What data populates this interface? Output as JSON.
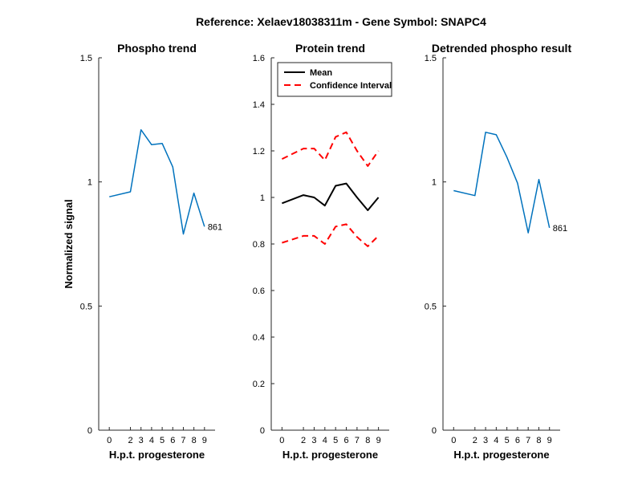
{
  "figure": {
    "suptitle": "Reference:  Xelaev18038311m - Gene Symbol:  SNAPC4"
  },
  "chart_data": [
    {
      "type": "line",
      "title": "Phospho trend",
      "xlabel": "H.p.t. progesterone",
      "ylabel": "Normalized signal",
      "x": [
        0,
        2,
        3,
        4,
        5,
        6,
        7,
        8,
        9
      ],
      "xticks": [
        "0",
        "2",
        "3",
        "4",
        "5",
        "6",
        "7",
        "8",
        "9"
      ],
      "ylim": [
        0,
        1.5
      ],
      "yticks": [
        "0",
        "0.5",
        "1",
        "1.5"
      ],
      "series": [
        {
          "name": "",
          "color": "#0072BD",
          "values": [
            0.94,
            0.96,
            1.21,
            1.15,
            1.155,
            1.06,
            0.79,
            0.955,
            0.82
          ]
        }
      ],
      "annotation": "861"
    },
    {
      "type": "line",
      "title": "Protein trend",
      "xlabel": "H.p.t. progesterone",
      "ylabel": "",
      "x": [
        0,
        2,
        3,
        4,
        5,
        6,
        7,
        8,
        9
      ],
      "xticks": [
        "0",
        "2",
        "3",
        "4",
        "5",
        "6",
        "7",
        "8",
        "9"
      ],
      "ylim": [
        0,
        1.6
      ],
      "yticks": [
        "0",
        "0.2",
        "0.4",
        "0.6",
        "0.8",
        "1",
        "1.2",
        "1.4",
        "1.6"
      ],
      "legend_position": "top-left",
      "series": [
        {
          "name": "Mean",
          "color": "#000000",
          "style": "solid",
          "values": [
            0.975,
            1.01,
            1.0,
            0.965,
            1.05,
            1.06,
            1.0,
            0.945,
            1.0
          ]
        },
        {
          "name": "Confidence Interval",
          "color": "#FF0000",
          "style": "dashed",
          "values": [
            1.165,
            1.21,
            1.21,
            1.16,
            1.26,
            1.28,
            1.2,
            1.135,
            1.2
          ]
        },
        {
          "name": "",
          "color": "#FF0000",
          "style": "dashed",
          "values": [
            0.805,
            0.835,
            0.835,
            0.8,
            0.875,
            0.885,
            0.83,
            0.79,
            0.835
          ]
        }
      ]
    },
    {
      "type": "line",
      "title": "Detrended phospho result",
      "xlabel": "H.p.t. progesterone",
      "ylabel": "",
      "x": [
        0,
        2,
        3,
        4,
        5,
        6,
        7,
        8,
        9
      ],
      "xticks": [
        "0",
        "2",
        "3",
        "4",
        "5",
        "6",
        "7",
        "8",
        "9"
      ],
      "ylim": [
        0,
        1.5
      ],
      "yticks": [
        "0",
        "0.5",
        "1",
        "1.5"
      ],
      "series": [
        {
          "name": "",
          "color": "#0072BD",
          "values": [
            0.965,
            0.945,
            1.2,
            1.19,
            1.1,
            0.995,
            0.795,
            1.01,
            0.815
          ]
        }
      ],
      "annotation": "861"
    }
  ]
}
